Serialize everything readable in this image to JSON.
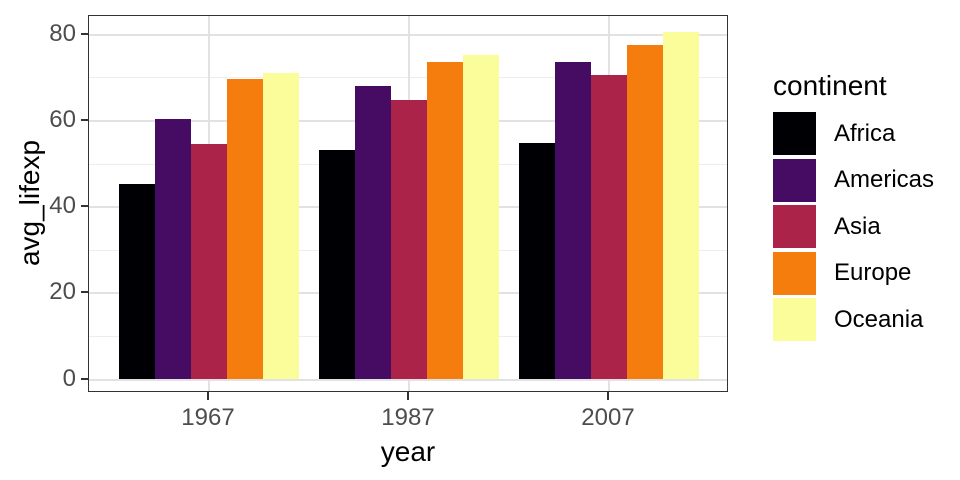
{
  "chart_data": {
    "type": "bar",
    "title": "",
    "xlabel": "year",
    "ylabel": "avg_lifexp",
    "categories": [
      "1967",
      "1987",
      "2007"
    ],
    "series": [
      {
        "name": "Africa",
        "color": "#000004",
        "values": [
          45.3,
          53.3,
          54.8
        ]
      },
      {
        "name": "Americas",
        "color": "#460B63",
        "values": [
          60.4,
          68.1,
          73.6
        ]
      },
      {
        "name": "Asia",
        "color": "#AB2348",
        "values": [
          54.7,
          64.9,
          70.7
        ]
      },
      {
        "name": "Europe",
        "color": "#F57D0E",
        "values": [
          69.7,
          73.6,
          77.6
        ]
      },
      {
        "name": "Oceania",
        "color": "#FBFD9B",
        "values": [
          71.1,
          75.3,
          80.7
        ]
      }
    ],
    "legend_title": "continent",
    "legend_position": "right",
    "y_ticks": [
      0,
      20,
      40,
      60,
      80
    ],
    "y_minor_ticks": [
      10,
      30,
      50,
      70
    ],
    "ylim": [
      -3.3,
      84.5
    ],
    "grid": true
  },
  "colors": {
    "background": "#FFFFFF",
    "panel_border": "#333333",
    "grid_major": "#E2E2E2",
    "grid_minor": "#EDEDED",
    "axis_tick": "#333333",
    "tick_label": "#4D4D4D",
    "text": "#000000"
  }
}
